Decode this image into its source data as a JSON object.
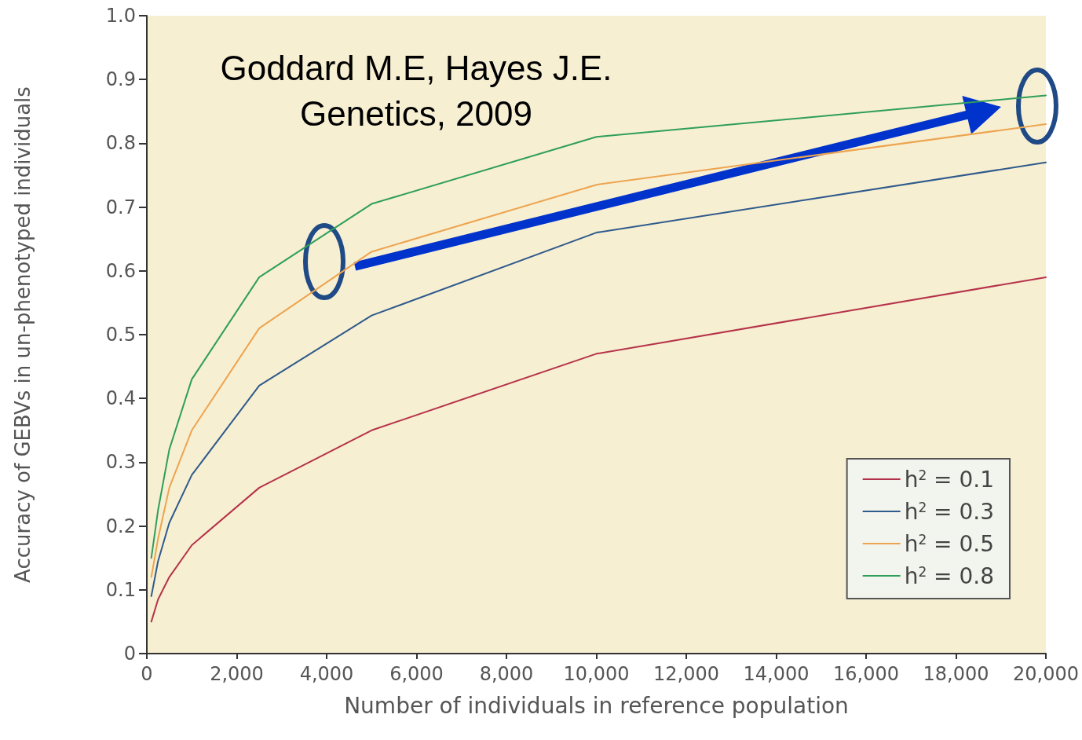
{
  "chart_data": {
    "type": "line",
    "xlabel": "Number of individuals in reference population",
    "ylabel": "Accuracy of GEBVs in un-phenotyped individuals",
    "x": [
      100,
      250,
      500,
      1000,
      2500,
      5000,
      10000,
      20000
    ],
    "series": [
      {
        "name": "h$^{2}$ = 0.1",
        "color": "#b5334a",
        "values": [
          0.05,
          0.085,
          0.12,
          0.17,
          0.26,
          0.35,
          0.47,
          0.59
        ]
      },
      {
        "name": "h$^{2}$ = 0.3",
        "color": "#2f5a8c",
        "values": [
          0.09,
          0.145,
          0.205,
          0.28,
          0.42,
          0.53,
          0.66,
          0.77
        ]
      },
      {
        "name": "h$^{2}$ = 0.5",
        "color": "#eda450",
        "values": [
          0.12,
          0.18,
          0.26,
          0.35,
          0.51,
          0.63,
          0.735,
          0.83
        ]
      },
      {
        "name": "h$^{2}$ = 0.8",
        "color": "#2f9e5a",
        "values": [
          0.15,
          0.225,
          0.32,
          0.43,
          0.59,
          0.705,
          0.81,
          0.875
        ]
      }
    ],
    "xlim": [
      0,
      20000
    ],
    "xticks": [
      0,
      {
        "value": 2000,
        "label": "2,000"
      },
      {
        "value": 4000,
        "label": "4,000"
      },
      {
        "value": 6000,
        "label": "6,000"
      },
      {
        "value": 8000,
        "label": "8,000"
      },
      {
        "value": 10000,
        "label": "10,000"
      },
      {
        "value": 12000,
        "label": "12,000"
      },
      {
        "value": 14000,
        "label": "14,000"
      },
      {
        "value": 16000,
        "label": "16,000"
      },
      {
        "value": 18000,
        "label": "18,000"
      },
      {
        "value": 20000,
        "label": "20,000"
      }
    ],
    "ylim": [
      0,
      1
    ],
    "yticks": [
      0,
      0.1,
      0.2,
      0.3,
      0.4,
      0.5,
      0.6,
      0.7,
      0.8,
      0.9,
      {
        "value": 1,
        "label": "1.0"
      }
    ],
    "annotations": [
      "Goddard M.E, Hayes J.E.\nGenetics, 2009"
    ],
    "legend": "bottom right",
    "grid": false,
    "marker": "none",
    "line_style": "solid"
  }
}
